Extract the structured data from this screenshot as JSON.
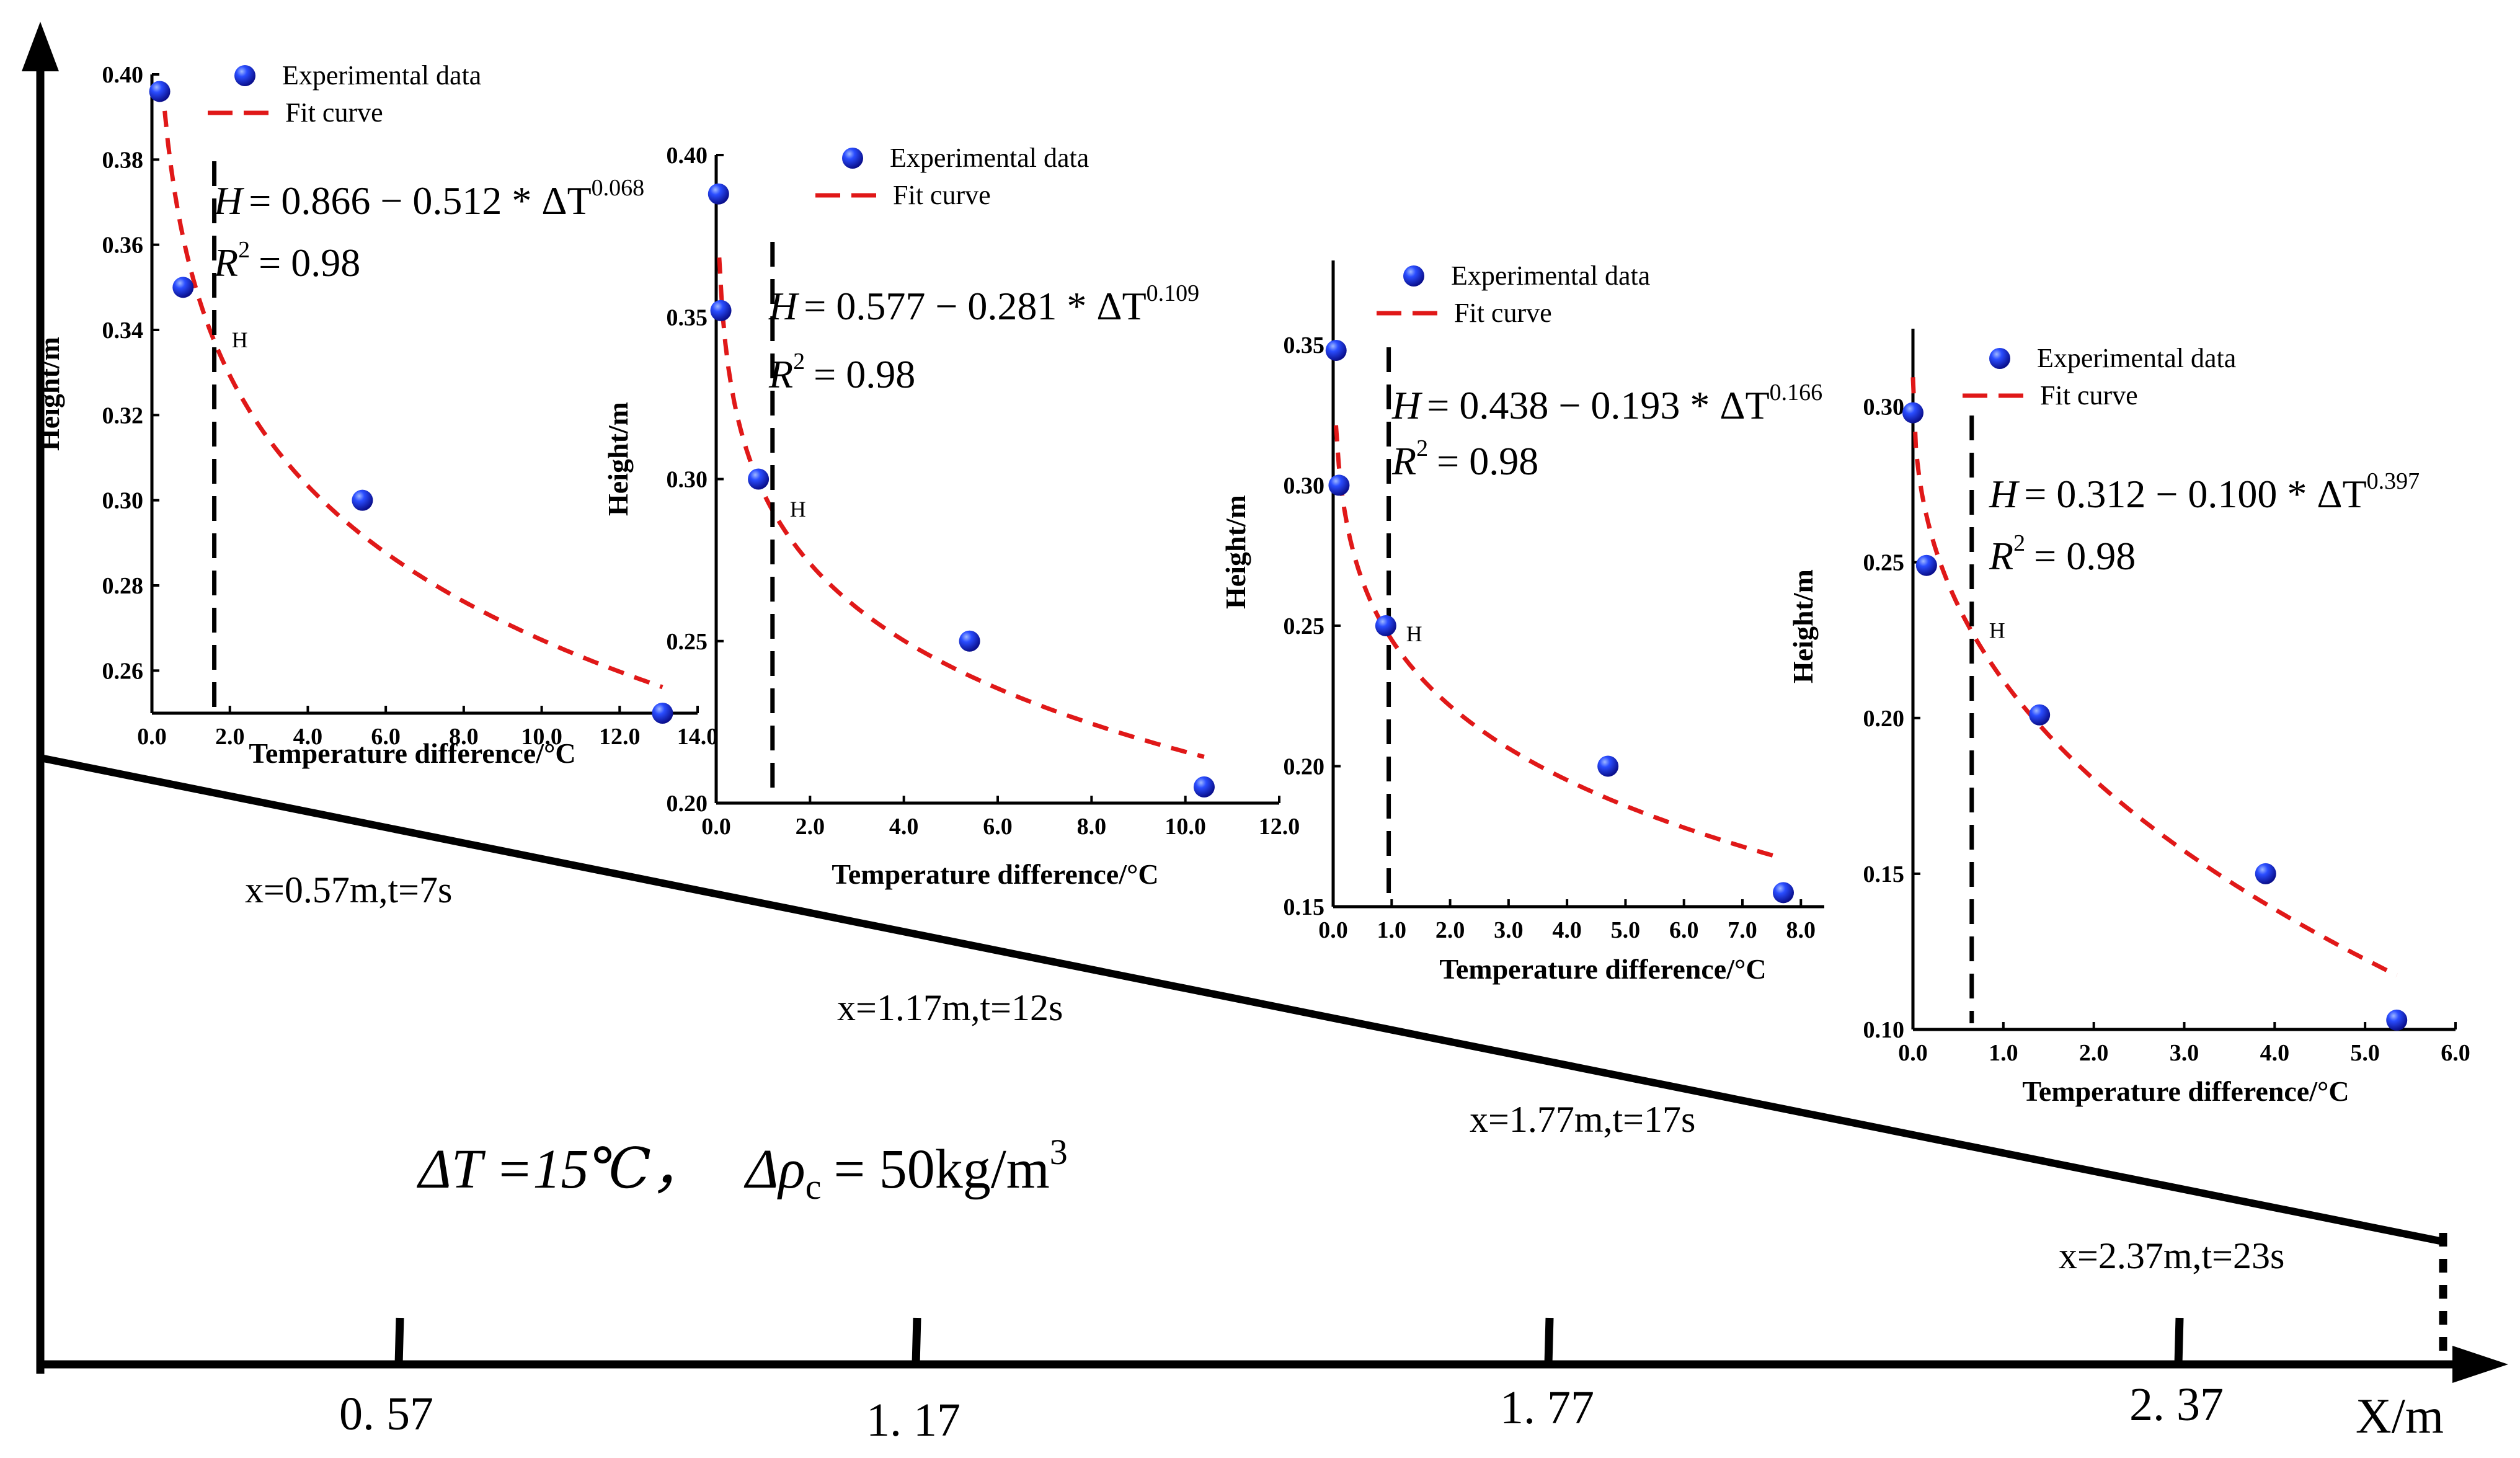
{
  "figure": {
    "x_axis_label": "X/m",
    "x_ticks": [
      "0. 57",
      "1. 17",
      "1. 77",
      "2. 37"
    ],
    "condition_label": "ΔT =15℃，  Δρc = 50kg/m³",
    "condition": {
      "dT_part": "ΔT =15℃，",
      "drho_symbol": "Δρ",
      "drho_sub": "c",
      "drho_value": "= 50kg/m",
      "drho_exp": "3"
    },
    "positions": [
      "x=0.57m,t=7s",
      "x=1.17m,t=12s",
      "x=1.77m,t=17s",
      "x=2.37m,t=23s"
    ]
  },
  "chart_data": [
    {
      "type": "scatter",
      "title": "x=0.57m,t=7s",
      "xlabel": "Temperature difference/°C",
      "ylabel": "Height/m",
      "xlim": [
        0,
        14
      ],
      "ylim": [
        0.25,
        0.4
      ],
      "xticks": [
        "0.0",
        "2.0",
        "4.0",
        "6.0",
        "8.0",
        "10.0",
        "12.0",
        "14.0"
      ],
      "yticks": [
        "0.26",
        "0.28",
        "0.30",
        "0.32",
        "0.34",
        "0.36",
        "0.38",
        "0.40"
      ],
      "legend": [
        "Experimental data",
        "Fit curve"
      ],
      "points": [
        [
          0.2,
          0.396
        ],
        [
          0.8,
          0.35
        ],
        [
          5.4,
          0.3
        ],
        [
          13.1,
          0.25
        ]
      ],
      "fit": {
        "a": 0.866,
        "b": 0.512,
        "c": 0.068
      },
      "equation": {
        "lhs": "H",
        "rhs": "= 0.866 − 0.512 * ΔT",
        "exp": "0.068"
      },
      "r2": {
        "label": "R",
        "exp": "2",
        "value": "= 0.98"
      },
      "h_marker": {
        "x": 1.6,
        "label": "H"
      }
    },
    {
      "type": "scatter",
      "title": "x=1.17m,t=12s",
      "xlabel": "Temperature difference/°C",
      "ylabel": "Height/m",
      "xlim": [
        0,
        12
      ],
      "ylim": [
        0.2,
        0.4
      ],
      "xticks": [
        "0.0",
        "2.0",
        "4.0",
        "6.0",
        "8.0",
        "10.0",
        "12.0"
      ],
      "yticks": [
        "0.20",
        "0.25",
        "0.30",
        "0.35",
        "0.40"
      ],
      "legend": [
        "Experimental data",
        "Fit curve"
      ],
      "points": [
        [
          0.05,
          0.388
        ],
        [
          0.1,
          0.352
        ],
        [
          0.9,
          0.3
        ],
        [
          5.4,
          0.25
        ],
        [
          10.4,
          0.205
        ]
      ],
      "fit": {
        "a": 0.577,
        "b": 0.281,
        "c": 0.109
      },
      "equation": {
        "lhs": "H",
        "rhs": "= 0.577 − 0.281 * ΔT",
        "exp": "0.109"
      },
      "r2": {
        "label": "R",
        "exp": "2",
        "value": "= 0.98"
      },
      "h_marker": {
        "x": 1.2,
        "label": "H"
      }
    },
    {
      "type": "scatter",
      "title": "x=1.77m,t=17s",
      "xlabel": "Temperature difference/°C",
      "ylabel": "Height/m",
      "xlim": [
        0,
        8.4
      ],
      "ylim": [
        0.15,
        0.38
      ],
      "xticks": [
        "0.0",
        "1.0",
        "2.0",
        "3.0",
        "4.0",
        "5.0",
        "6.0",
        "7.0",
        "8.0"
      ],
      "yticks": [
        "0.15",
        "0.20",
        "0.25",
        "0.30",
        "0.35"
      ],
      "legend": [
        "Experimental data",
        "Fit curve"
      ],
      "points": [
        [
          0.05,
          0.348
        ],
        [
          0.1,
          0.3
        ],
        [
          0.9,
          0.25
        ],
        [
          4.7,
          0.2
        ],
        [
          7.7,
          0.155
        ]
      ],
      "fit": {
        "a": 0.438,
        "b": 0.193,
        "c": 0.166
      },
      "equation": {
        "lhs": "H",
        "rhs": "= 0.438 − 0.193 * ΔT",
        "exp": "0.166"
      },
      "r2": {
        "label": "R",
        "exp": "2",
        "value": "= 0.98"
      },
      "h_marker": {
        "x": 0.95,
        "label": "H"
      }
    },
    {
      "type": "scatter",
      "title": "x=2.37m,t=23s",
      "xlabel": "Temperature difference/°C",
      "ylabel": "Height/m",
      "xlim": [
        0,
        6
      ],
      "ylim": [
        0.1,
        0.325
      ],
      "xticks": [
        "0.0",
        "1.0",
        "2.0",
        "3.0",
        "4.0",
        "5.0",
        "6.0"
      ],
      "yticks": [
        "0.10",
        "0.15",
        "0.20",
        "0.25",
        "0.30"
      ],
      "legend": [
        "Experimental data",
        "Fit curve"
      ],
      "points": [
        [
          0.0,
          0.298
        ],
        [
          0.15,
          0.249
        ],
        [
          1.4,
          0.201
        ],
        [
          3.9,
          0.15
        ],
        [
          5.35,
          0.103
        ]
      ],
      "fit": {
        "a": 0.312,
        "b": 0.1,
        "c": 0.397
      },
      "equation": {
        "lhs": "H",
        "rhs": "= 0.312 − 0.100 * ΔT",
        "exp": "0.397"
      },
      "r2": {
        "label": "R",
        "exp": "2",
        "value": "= 0.98"
      },
      "h_marker": {
        "x": 0.65,
        "label": "H"
      }
    }
  ]
}
